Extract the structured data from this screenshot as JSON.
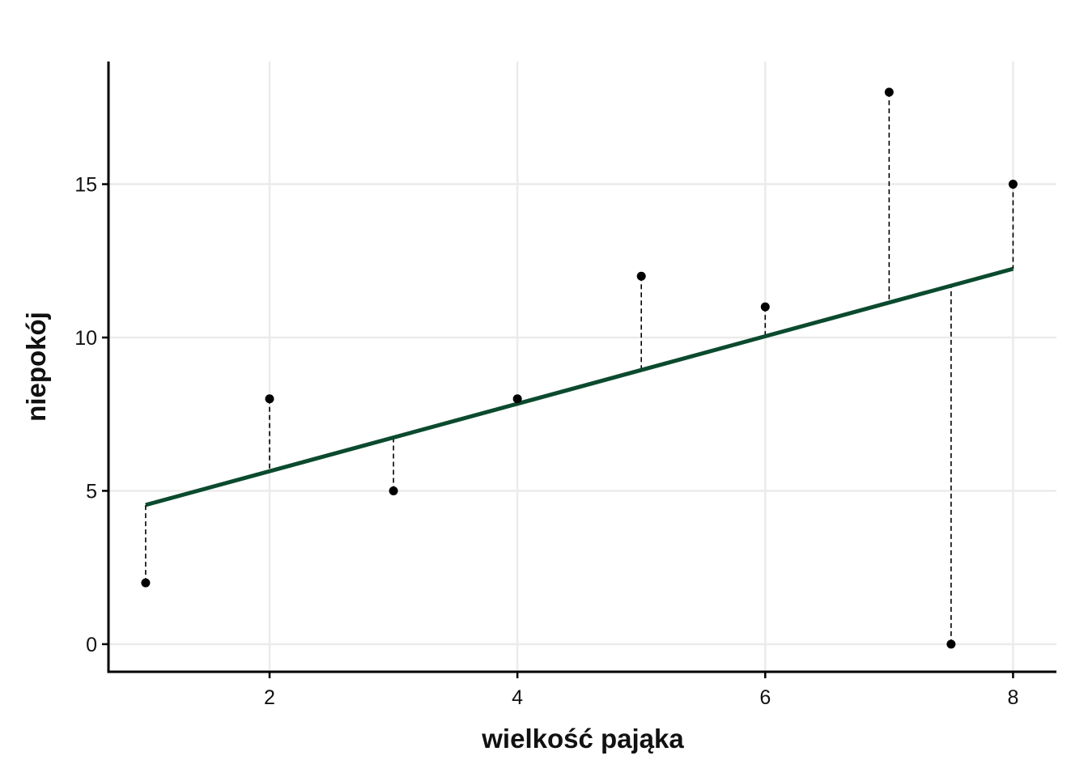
{
  "chart_data": {
    "type": "scatter",
    "xlabel": "wielkość pająka",
    "ylabel": "niepokój",
    "xlim": [
      0.7,
      8.35
    ],
    "ylim": [
      -0.9,
      19
    ],
    "x_ticks": [
      2,
      4,
      6,
      8
    ],
    "y_ticks": [
      0,
      5,
      10,
      15
    ],
    "grid": true,
    "points": [
      {
        "x": 1,
        "y": 2
      },
      {
        "x": 2,
        "y": 8
      },
      {
        "x": 3,
        "y": 5
      },
      {
        "x": 4,
        "y": 8
      },
      {
        "x": 5,
        "y": 12
      },
      {
        "x": 6,
        "y": 11
      },
      {
        "x": 7,
        "y": 18
      },
      {
        "x": 7.5,
        "y": 0
      },
      {
        "x": 8,
        "y": 15
      }
    ],
    "regression_line": {
      "intercept": 3.44,
      "slope": 1.1,
      "x_range": [
        1,
        8
      ]
    },
    "residual_lines": "dashed",
    "colors": {
      "line": "#0b4a2e",
      "points": "#000000",
      "grid": "#ebebeb",
      "axis": "#000000"
    }
  }
}
